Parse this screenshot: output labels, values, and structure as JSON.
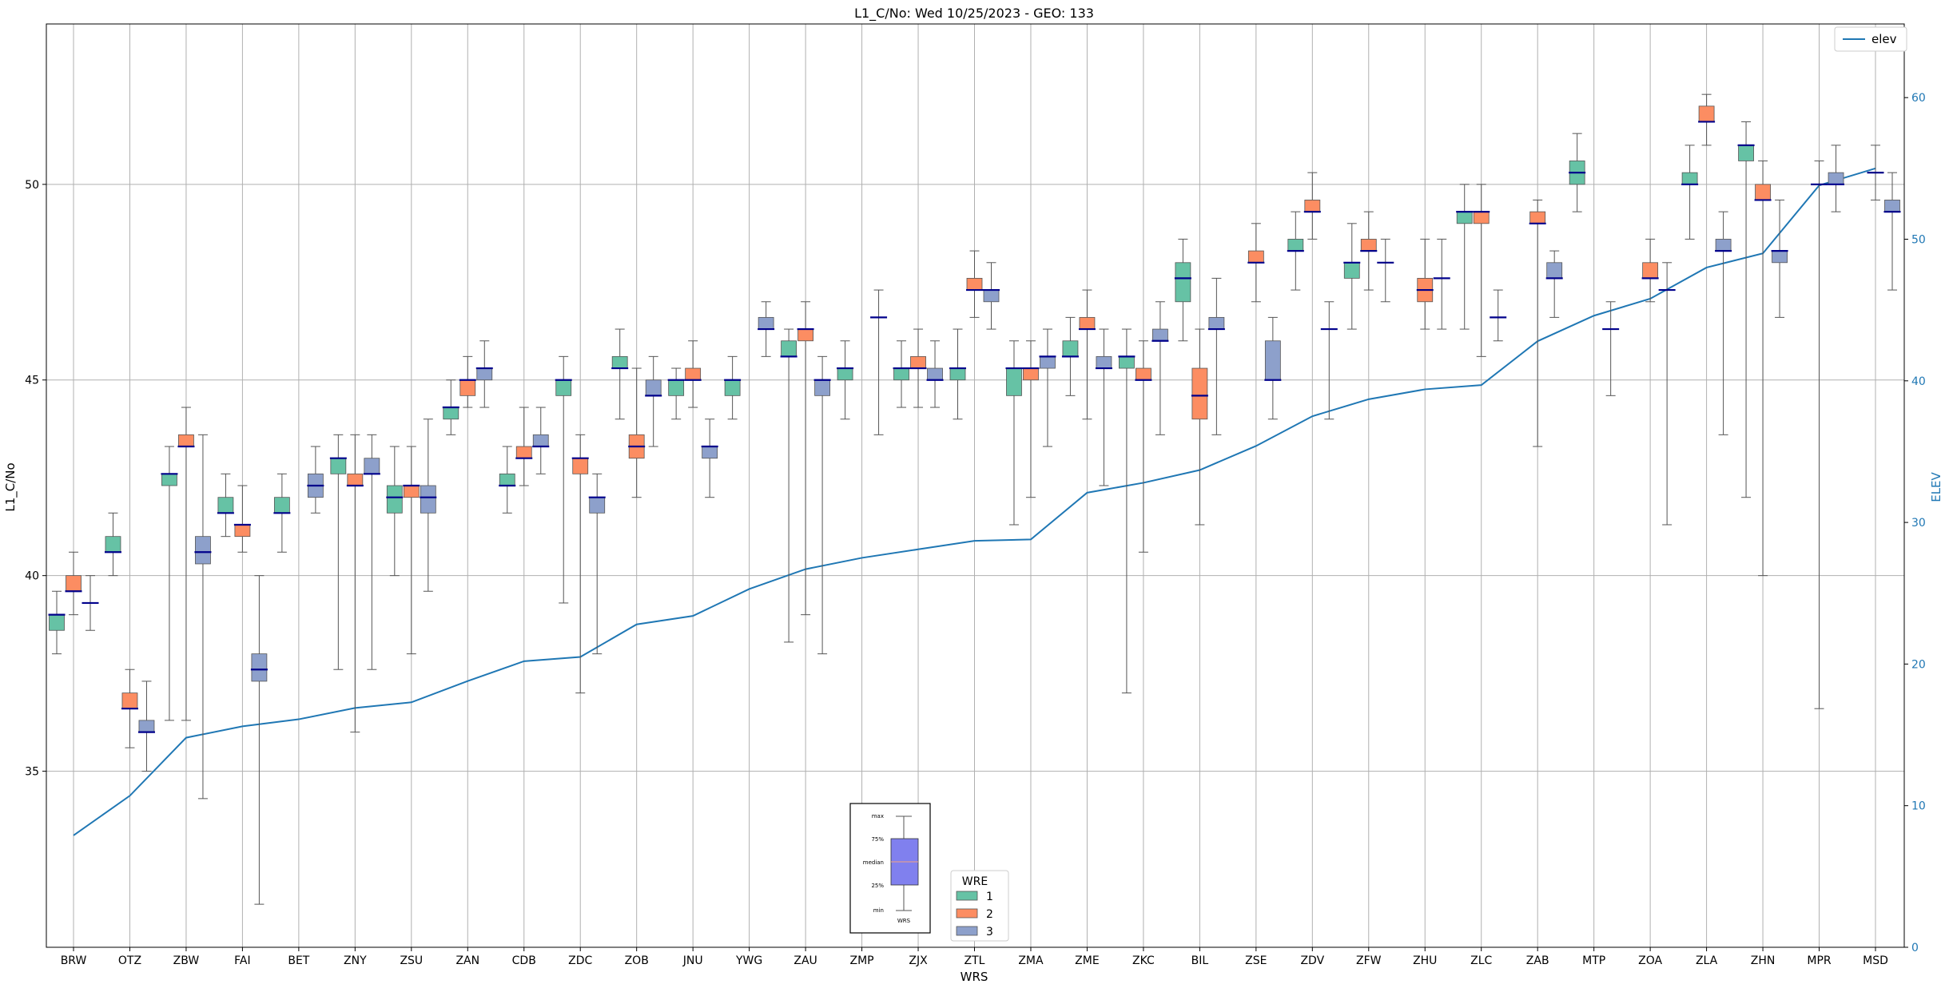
{
  "chart_data": {
    "type": "box",
    "title": "L1_C/No: Wed 10/25/2023 - GEO: 133",
    "xlabel": "WRS",
    "ylabel": "L1_C/No",
    "ylabel_right": "ELEV",
    "ylim": [
      30.5,
      54.1
    ],
    "ylim_right": [
      0,
      65.2
    ],
    "yticks": [
      35,
      40,
      45,
      50
    ],
    "yticks_right": [
      0,
      10,
      20,
      30,
      40,
      50,
      60
    ],
    "grid": true,
    "categories": [
      "BRW",
      "OTZ",
      "ZBW",
      "FAI",
      "BET",
      "ZNY",
      "ZSU",
      "ZAN",
      "CDB",
      "ZDC",
      "ZOB",
      "JNU",
      "YWG",
      "ZAU",
      "ZMP",
      "ZJX",
      "ZTL",
      "ZMA",
      "ZME",
      "ZKC",
      "BIL",
      "ZSE",
      "ZDV",
      "ZFW",
      "ZHU",
      "ZLC",
      "ZAB",
      "MTP",
      "ZOA",
      "ZLA",
      "ZHN",
      "MPR",
      "MSD"
    ],
    "wre_legend": {
      "title": "WRE",
      "entries": [
        "1",
        "2",
        "3"
      ]
    },
    "line_legend": {
      "label": "elev"
    },
    "colors": {
      "1": "#66c2a5",
      "2": "#fc8d62",
      "3": "#8da0cb",
      "median": "#00008b",
      "elev": "#1f77b4",
      "whisker": "#555555"
    },
    "series": [
      {
        "name": "1",
        "boxes": [
          {
            "cat": "BRW",
            "min": 38.0,
            "q1": 38.6,
            "median": 39.0,
            "q3": 39.0,
            "max": 39.6
          },
          {
            "cat": "OTZ",
            "min": 40.0,
            "q1": 40.6,
            "median": 40.6,
            "q3": 41.0,
            "max": 41.6
          },
          {
            "cat": "ZBW",
            "min": 36.3,
            "q1": 42.3,
            "median": 42.6,
            "q3": 42.6,
            "max": 43.3
          },
          {
            "cat": "FAI",
            "min": 41.0,
            "q1": 41.6,
            "median": 41.6,
            "q3": 42.0,
            "max": 42.6
          },
          {
            "cat": "BET",
            "min": 40.6,
            "q1": 41.6,
            "median": 41.6,
            "q3": 42.0,
            "max": 42.6
          },
          {
            "cat": "ZNY",
            "min": 37.6,
            "q1": 42.6,
            "median": 43.0,
            "q3": 43.0,
            "max": 43.6
          },
          {
            "cat": "ZSU",
            "min": 40.0,
            "q1": 41.6,
            "median": 42.0,
            "q3": 42.3,
            "max": 43.3
          },
          {
            "cat": "ZAN",
            "min": 43.6,
            "q1": 44.0,
            "median": 44.3,
            "q3": 44.3,
            "max": 45.0
          },
          {
            "cat": "CDB",
            "min": 41.6,
            "q1": 42.3,
            "median": 42.3,
            "q3": 42.6,
            "max": 43.3
          },
          {
            "cat": "ZDC",
            "min": 39.3,
            "q1": 44.6,
            "median": 45.0,
            "q3": 45.0,
            "max": 45.6
          },
          {
            "cat": "ZOB",
            "min": 44.0,
            "q1": 45.3,
            "median": 45.3,
            "q3": 45.6,
            "max": 46.3
          },
          {
            "cat": "JNU",
            "min": 44.0,
            "q1": 44.6,
            "median": 45.0,
            "q3": 45.0,
            "max": 45.3
          },
          {
            "cat": "YWG",
            "min": 44.0,
            "q1": 44.6,
            "median": 45.0,
            "q3": 45.0,
            "max": 45.6
          },
          {
            "cat": "ZAU",
            "min": 38.3,
            "q1": 45.6,
            "median": 45.6,
            "q3": 46.0,
            "max": 46.3
          },
          {
            "cat": "ZMP",
            "min": 44.0,
            "q1": 45.0,
            "median": 45.3,
            "q3": 45.3,
            "max": 46.0
          },
          {
            "cat": "ZJX",
            "min": 44.3,
            "q1": 45.0,
            "median": 45.3,
            "q3": 45.3,
            "max": 46.0
          },
          {
            "cat": "ZTL",
            "min": 44.0,
            "q1": 45.0,
            "median": 45.3,
            "q3": 45.3,
            "max": 46.3
          },
          {
            "cat": "ZMA",
            "min": 41.3,
            "q1": 44.6,
            "median": 45.3,
            "q3": 45.3,
            "max": 46.0
          },
          {
            "cat": "ZME",
            "min": 44.6,
            "q1": 45.6,
            "median": 45.6,
            "q3": 46.0,
            "max": 46.6
          },
          {
            "cat": "ZKC",
            "min": 37.0,
            "q1": 45.3,
            "median": 45.6,
            "q3": 45.6,
            "max": 46.3
          },
          {
            "cat": "BIL",
            "min": 46.0,
            "q1": 47.0,
            "median": 47.6,
            "q3": 48.0,
            "max": 48.6
          },
          {
            "cat": "ZDV",
            "min": 47.3,
            "q1": 48.3,
            "median": 48.3,
            "q3": 48.6,
            "max": 49.3
          },
          {
            "cat": "ZFW",
            "min": 46.3,
            "q1": 47.6,
            "median": 48.0,
            "q3": 48.0,
            "max": 49.0
          },
          {
            "cat": "ZLC",
            "min": 46.3,
            "q1": 49.0,
            "median": 49.3,
            "q3": 49.3,
            "max": 50.0
          },
          {
            "cat": "MTP",
            "min": 49.3,
            "q1": 50.0,
            "median": 50.3,
            "q3": 50.6,
            "max": 51.3
          },
          {
            "cat": "ZLA",
            "min": 48.6,
            "q1": 50.0,
            "median": 50.0,
            "q3": 50.3,
            "max": 51.0
          },
          {
            "cat": "ZHN",
            "min": 42.0,
            "q1": 50.6,
            "median": 51.0,
            "q3": 51.0,
            "max": 51.6
          }
        ]
      },
      {
        "name": "2",
        "boxes": [
          {
            "cat": "BRW",
            "min": 39.0,
            "q1": 39.6,
            "median": 39.6,
            "q3": 40.0,
            "max": 40.6
          },
          {
            "cat": "OTZ",
            "min": 35.6,
            "q1": 36.6,
            "median": 36.6,
            "q3": 37.0,
            "max": 37.6
          },
          {
            "cat": "ZBW",
            "min": 36.3,
            "q1": 43.3,
            "median": 43.3,
            "q3": 43.6,
            "max": 44.3
          },
          {
            "cat": "FAI",
            "min": 40.6,
            "q1": 41.0,
            "median": 41.3,
            "q3": 41.3,
            "max": 42.3
          },
          {
            "cat": "ZNY",
            "min": 36.0,
            "q1": 42.3,
            "median": 42.3,
            "q3": 42.6,
            "max": 43.6
          },
          {
            "cat": "ZSU",
            "min": 38.0,
            "q1": 42.0,
            "median": 42.3,
            "q3": 42.3,
            "max": 43.3
          },
          {
            "cat": "ZAN",
            "min": 44.3,
            "q1": 44.6,
            "median": 45.0,
            "q3": 45.0,
            "max": 45.6
          },
          {
            "cat": "CDB",
            "min": 42.3,
            "q1": 43.0,
            "median": 43.0,
            "q3": 43.3,
            "max": 44.3
          },
          {
            "cat": "ZDC",
            "min": 37.0,
            "q1": 42.6,
            "median": 43.0,
            "q3": 43.0,
            "max": 43.6
          },
          {
            "cat": "ZOB",
            "min": 42.0,
            "q1": 43.0,
            "median": 43.3,
            "q3": 43.6,
            "max": 45.3
          },
          {
            "cat": "JNU",
            "min": 44.3,
            "q1": 45.0,
            "median": 45.0,
            "q3": 45.3,
            "max": 46.0
          },
          {
            "cat": "ZAU",
            "min": 39.0,
            "q1": 46.0,
            "median": 46.3,
            "q3": 46.3,
            "max": 47.0
          },
          {
            "cat": "ZJX",
            "min": 44.3,
            "q1": 45.3,
            "median": 45.3,
            "q3": 45.6,
            "max": 46.3
          },
          {
            "cat": "ZTL",
            "min": 46.6,
            "q1": 47.3,
            "median": 47.3,
            "q3": 47.6,
            "max": 48.3
          },
          {
            "cat": "ZMA",
            "min": 42.0,
            "q1": 45.0,
            "median": 45.3,
            "q3": 45.3,
            "max": 46.0
          },
          {
            "cat": "ZME",
            "min": 44.0,
            "q1": 46.3,
            "median": 46.3,
            "q3": 46.6,
            "max": 47.3
          },
          {
            "cat": "ZKC",
            "min": 40.6,
            "q1": 45.0,
            "median": 45.0,
            "q3": 45.3,
            "max": 46.0
          },
          {
            "cat": "BIL",
            "min": 41.3,
            "q1": 44.0,
            "median": 44.6,
            "q3": 45.3,
            "max": 46.3
          },
          {
            "cat": "ZSE",
            "min": 47.0,
            "q1": 48.0,
            "median": 48.0,
            "q3": 48.3,
            "max": 49.0
          },
          {
            "cat": "ZDV",
            "min": 48.6,
            "q1": 49.3,
            "median": 49.3,
            "q3": 49.6,
            "max": 50.3
          },
          {
            "cat": "ZFW",
            "min": 47.3,
            "q1": 48.3,
            "median": 48.3,
            "q3": 48.6,
            "max": 49.3
          },
          {
            "cat": "ZHU",
            "min": 46.3,
            "q1": 47.0,
            "median": 47.3,
            "q3": 47.6,
            "max": 48.6
          },
          {
            "cat": "ZLC",
            "min": 45.6,
            "q1": 49.0,
            "median": 49.3,
            "q3": 49.3,
            "max": 50.0
          },
          {
            "cat": "ZAB",
            "min": 43.3,
            "q1": 49.0,
            "median": 49.0,
            "q3": 49.3,
            "max": 49.6
          },
          {
            "cat": "ZOA",
            "min": 47.0,
            "q1": 47.6,
            "median": 47.6,
            "q3": 48.0,
            "max": 48.6
          },
          {
            "cat": "ZLA",
            "min": 51.0,
            "q1": 51.6,
            "median": 51.6,
            "q3": 52.0,
            "max": 52.3
          },
          {
            "cat": "ZHN",
            "min": 40.0,
            "q1": 49.6,
            "median": 49.6,
            "q3": 50.0,
            "max": 50.6
          },
          {
            "cat": "MPR",
            "min": 36.6,
            "q1": 50.0,
            "median": 50.0,
            "q3": 50.0,
            "max": 50.6
          },
          {
            "cat": "MSD",
            "min": 49.6,
            "q1": 50.3,
            "median": 50.3,
            "q3": 50.3,
            "max": 51.0
          }
        ]
      },
      {
        "name": "3",
        "boxes": [
          {
            "cat": "BRW",
            "min": 38.6,
            "q1": 39.3,
            "median": 39.3,
            "q3": 39.3,
            "max": 40.0
          },
          {
            "cat": "OTZ",
            "min": 35.0,
            "q1": 36.0,
            "median": 36.0,
            "q3": 36.3,
            "max": 37.3
          },
          {
            "cat": "ZBW",
            "min": 34.3,
            "q1": 40.3,
            "median": 40.6,
            "q3": 41.0,
            "max": 43.6
          },
          {
            "cat": "FAI",
            "min": 31.6,
            "q1": 37.3,
            "median": 37.6,
            "q3": 38.0,
            "max": 40.0
          },
          {
            "cat": "BET",
            "min": 41.6,
            "q1": 42.0,
            "median": 42.3,
            "q3": 42.6,
            "max": 43.3
          },
          {
            "cat": "ZNY",
            "min": 37.6,
            "q1": 42.6,
            "median": 42.6,
            "q3": 43.0,
            "max": 43.6
          },
          {
            "cat": "ZSU",
            "min": 39.6,
            "q1": 41.6,
            "median": 42.0,
            "q3": 42.3,
            "max": 44.0
          },
          {
            "cat": "ZAN",
            "min": 44.3,
            "q1": 45.0,
            "median": 45.3,
            "q3": 45.3,
            "max": 46.0
          },
          {
            "cat": "CDB",
            "min": 42.6,
            "q1": 43.3,
            "median": 43.3,
            "q3": 43.6,
            "max": 44.3
          },
          {
            "cat": "ZDC",
            "min": 38.0,
            "q1": 41.6,
            "median": 42.0,
            "q3": 42.0,
            "max": 42.6
          },
          {
            "cat": "ZOB",
            "min": 43.3,
            "q1": 44.6,
            "median": 44.6,
            "q3": 45.0,
            "max": 45.6
          },
          {
            "cat": "JNU",
            "min": 42.0,
            "q1": 43.0,
            "median": 43.3,
            "q3": 43.3,
            "max": 44.0
          },
          {
            "cat": "YWG",
            "min": 45.6,
            "q1": 46.3,
            "median": 46.3,
            "q3": 46.6,
            "max": 47.0
          },
          {
            "cat": "ZAU",
            "min": 38.0,
            "q1": 44.6,
            "median": 45.0,
            "q3": 45.0,
            "max": 45.6
          },
          {
            "cat": "ZMP",
            "min": 43.6,
            "q1": 46.6,
            "median": 46.6,
            "q3": 46.6,
            "max": 47.3
          },
          {
            "cat": "ZJX",
            "min": 44.3,
            "q1": 45.0,
            "median": 45.0,
            "q3": 45.3,
            "max": 46.0
          },
          {
            "cat": "ZTL",
            "min": 46.3,
            "q1": 47.0,
            "median": 47.3,
            "q3": 47.3,
            "max": 48.0
          },
          {
            "cat": "ZMA",
            "min": 43.3,
            "q1": 45.3,
            "median": 45.6,
            "q3": 45.6,
            "max": 46.3
          },
          {
            "cat": "ZME",
            "min": 42.3,
            "q1": 45.3,
            "median": 45.3,
            "q3": 45.6,
            "max": 46.3
          },
          {
            "cat": "ZKC",
            "min": 43.6,
            "q1": 46.0,
            "median": 46.0,
            "q3": 46.3,
            "max": 47.0
          },
          {
            "cat": "BIL",
            "min": 43.6,
            "q1": 46.3,
            "median": 46.3,
            "q3": 46.6,
            "max": 47.6
          },
          {
            "cat": "ZSE",
            "min": 44.0,
            "q1": 45.0,
            "median": 45.0,
            "q3": 46.0,
            "max": 46.6
          },
          {
            "cat": "ZDV",
            "min": 44.0,
            "q1": 46.3,
            "median": 46.3,
            "q3": 46.3,
            "max": 47.0
          },
          {
            "cat": "ZFW",
            "min": 47.0,
            "q1": 48.0,
            "median": 48.0,
            "q3": 48.0,
            "max": 48.6
          },
          {
            "cat": "ZHU",
            "min": 46.3,
            "q1": 47.6,
            "median": 47.6,
            "q3": 47.6,
            "max": 48.6
          },
          {
            "cat": "ZLC",
            "min": 46.0,
            "q1": 46.6,
            "median": 46.6,
            "q3": 46.6,
            "max": 47.3
          },
          {
            "cat": "ZAB",
            "min": 46.6,
            "q1": 47.6,
            "median": 47.6,
            "q3": 48.0,
            "max": 48.3
          },
          {
            "cat": "MTP",
            "min": 44.6,
            "q1": 46.3,
            "median": 46.3,
            "q3": 46.3,
            "max": 47.0
          },
          {
            "cat": "ZOA",
            "min": 41.3,
            "q1": 47.3,
            "median": 47.3,
            "q3": 47.3,
            "max": 48.0
          },
          {
            "cat": "ZLA",
            "min": 43.6,
            "q1": 48.3,
            "median": 48.3,
            "q3": 48.6,
            "max": 49.3
          },
          {
            "cat": "ZHN",
            "min": 46.6,
            "q1": 48.0,
            "median": 48.3,
            "q3": 48.3,
            "max": 49.6
          },
          {
            "cat": "MPR",
            "min": 49.3,
            "q1": 50.0,
            "median": 50.0,
            "q3": 50.3,
            "max": 51.0
          },
          {
            "cat": "MSD",
            "min": 47.3,
            "q1": 49.3,
            "median": 49.3,
            "q3": 49.6,
            "max": 50.3
          }
        ]
      }
    ],
    "elev": [
      7.9,
      10.7,
      14.8,
      15.6,
      16.1,
      16.9,
      17.3,
      18.8,
      20.2,
      20.5,
      22.8,
      23.4,
      25.3,
      26.7,
      27.5,
      28.1,
      28.7,
      28.8,
      32.1,
      32.8,
      33.7,
      35.4,
      37.5,
      38.7,
      39.4,
      39.7,
      42.8,
      44.6,
      45.8,
      48.0,
      49.0,
      53.8,
      55.0
    ],
    "inset": {
      "labels": [
        "max",
        "75%",
        "median",
        "25%",
        "min"
      ],
      "caption": "WRS"
    }
  }
}
